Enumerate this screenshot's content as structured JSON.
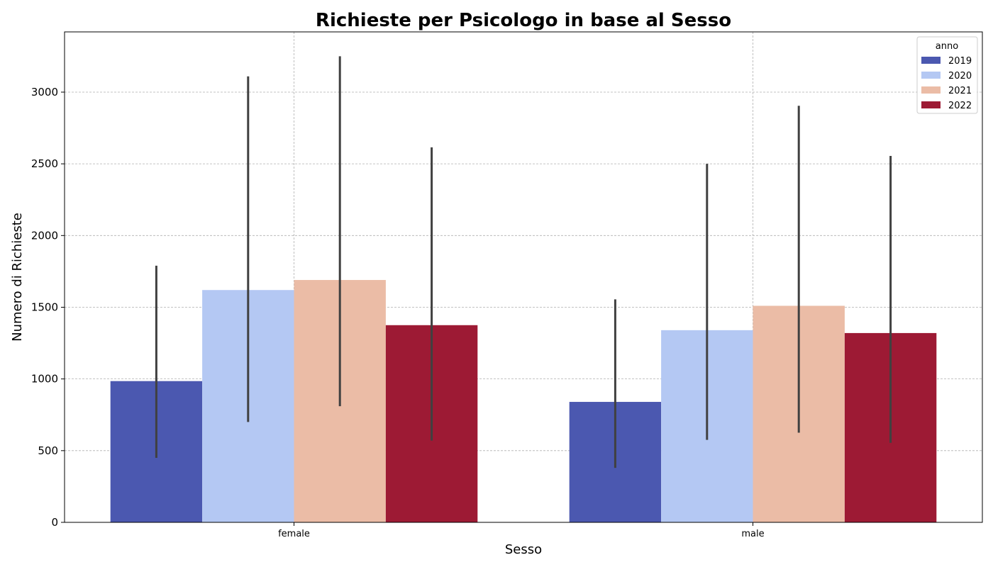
{
  "chart_data": {
    "type": "bar",
    "title": "Richieste per Psicologo in base al Sesso",
    "xlabel": "Sesso",
    "ylabel": "Numero di Richieste",
    "categories": [
      "female",
      "male"
    ],
    "ylim": [
      0,
      3420
    ],
    "yticks": [
      0,
      500,
      1000,
      1500,
      2000,
      2500,
      3000
    ],
    "grid": true,
    "legend": {
      "title": "anno",
      "placement": "top-right"
    },
    "series": [
      {
        "name": "2019",
        "color": "#4b58b0",
        "values": [
          985,
          840
        ],
        "error_low": [
          450,
          380
        ],
        "error_high": [
          1790,
          1555
        ]
      },
      {
        "name": "2020",
        "color": "#b4c8f3",
        "values": [
          1620,
          1340
        ],
        "error_low": [
          700,
          575
        ],
        "error_high": [
          3110,
          2500
        ]
      },
      {
        "name": "2021",
        "color": "#ebbca6",
        "values": [
          1690,
          1510
        ],
        "error_low": [
          810,
          625
        ],
        "error_high": [
          3250,
          2905
        ]
      },
      {
        "name": "2022",
        "color": "#9d1a34",
        "values": [
          1375,
          1320
        ],
        "error_low": [
          570,
          555
        ],
        "error_high": [
          2615,
          2555
        ]
      }
    ]
  }
}
